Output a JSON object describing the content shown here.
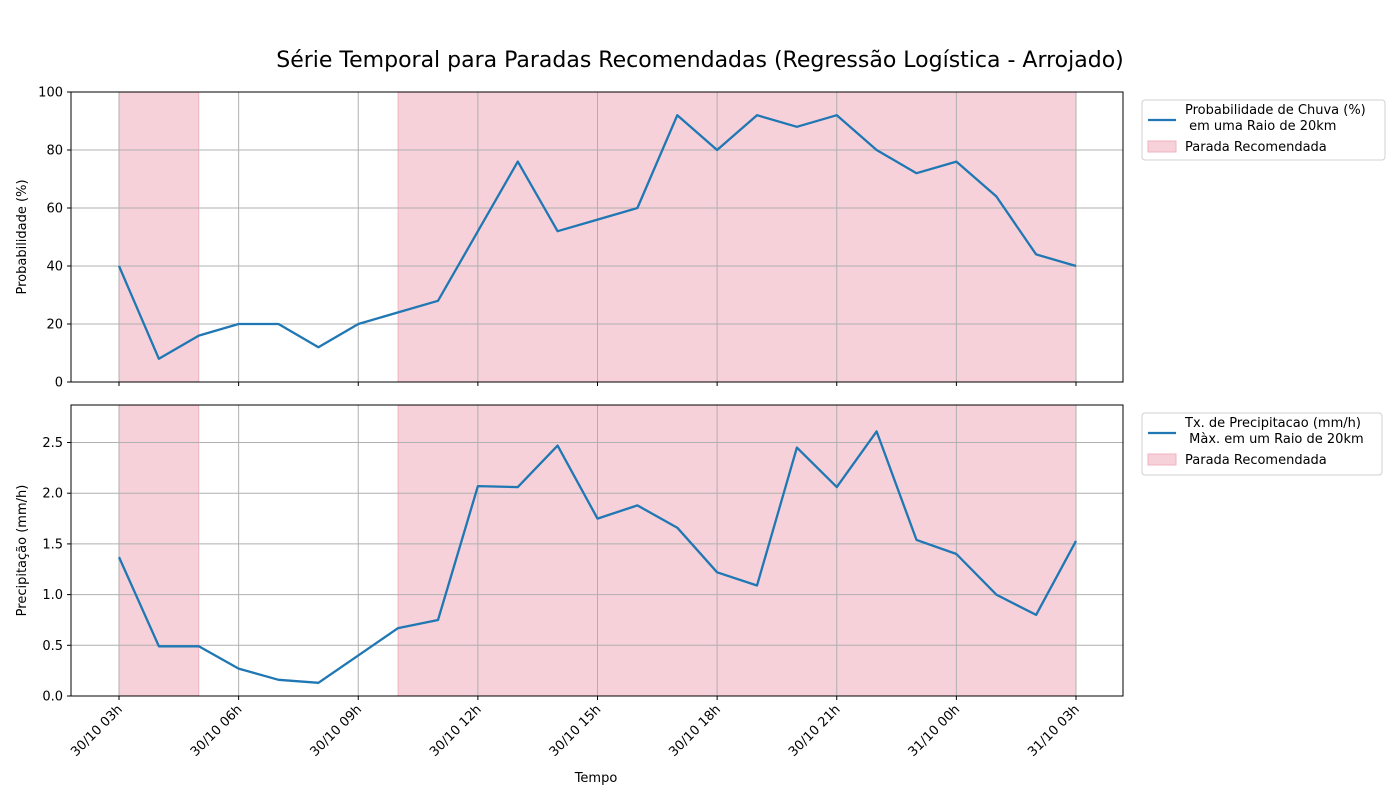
{
  "chart_data": {
    "type": "line",
    "title": "Série Temporal para Paradas Recomendadas (Regressão Logística - Arrojado)",
    "xlabel": "Tempo",
    "x_ticks": [
      "30/10 03h",
      "30/10 06h",
      "30/10 09h",
      "30/10 12h",
      "30/10 15h",
      "30/10 18h",
      "30/10 21h",
      "31/10 00h",
      "31/10 03h"
    ],
    "x_hours": [
      0,
      1,
      2,
      3,
      4,
      5,
      6,
      7,
      8,
      9,
      10,
      11,
      12,
      13,
      14,
      15,
      16,
      17,
      18,
      19,
      20,
      21,
      22,
      23,
      24
    ],
    "colors": {
      "line": "#1f77b4",
      "shade": "#f0b3c0",
      "grid": "#b0b0b0"
    },
    "panels": [
      {
        "ylabel": "Probabilidade (%)",
        "ylim": [
          0,
          100
        ],
        "yticks": [
          0,
          20,
          40,
          60,
          80,
          100
        ],
        "ytick_decimals": 0,
        "grid": true,
        "legend_placement": "outside-right-top",
        "series": [
          {
            "name": "Probabilidade de Chuva (%)\n em uma Raio de 20km",
            "values": [
              40,
              8,
              16,
              20,
              20,
              12,
              20,
              24,
              28,
              52,
              76,
              52,
              56,
              60,
              92,
              80,
              92,
              88,
              92,
              80,
              72,
              76,
              64,
              44,
              40
            ]
          }
        ],
        "shaded_name": "Parada Recomendada",
        "shaded_ranges": [
          [
            0,
            2
          ],
          [
            7,
            24
          ]
        ]
      },
      {
        "ylabel": "Precipitação (mm/h)",
        "ylim": [
          0,
          2.87
        ],
        "yticks": [
          0.0,
          0.5,
          1.0,
          1.5,
          2.0,
          2.5
        ],
        "ytick_decimals": 1,
        "grid": true,
        "legend_placement": "outside-right-top",
        "series": [
          {
            "name": "Tx. de Precipitacao (mm/h)\n Màx. em um Raio de 20km",
            "values": [
              1.37,
              0.49,
              0.49,
              0.27,
              0.16,
              0.13,
              0.4,
              0.67,
              0.75,
              2.07,
              2.06,
              2.47,
              1.75,
              1.88,
              1.66,
              1.22,
              1.09,
              2.45,
              2.06,
              2.61,
              1.54,
              1.4,
              1.0,
              0.8,
              1.53
            ]
          }
        ],
        "shaded_name": "Parada Recomendada",
        "shaded_ranges": [
          [
            0,
            2
          ],
          [
            7,
            24
          ]
        ]
      }
    ]
  }
}
